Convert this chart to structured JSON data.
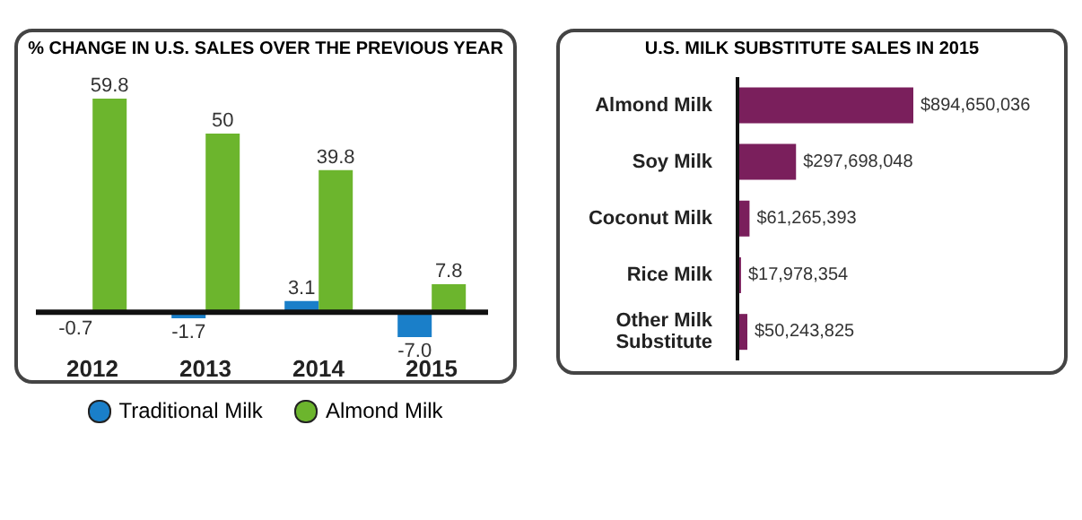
{
  "chart_data": [
    {
      "type": "bar",
      "title": "% CHANGE IN U.S. SALES OVER THE PREVIOUS YEAR",
      "categories": [
        "2012",
        "2013",
        "2014",
        "2015"
      ],
      "series": [
        {
          "name": "Traditional Milk",
          "color": "#1a7fc9",
          "values": [
            -0.7,
            -1.7,
            3.1,
            -7.0
          ],
          "value_labels": [
            "-0.7",
            "-1.7",
            "3.1",
            "-7.0"
          ]
        },
        {
          "name": "Almond Milk",
          "color": "#6cb52d",
          "values": [
            59.8,
            50,
            39.8,
            7.8
          ],
          "value_labels": [
            "59.8",
            "50",
            "39.8",
            "7.8"
          ]
        }
      ],
      "data_labels": true,
      "legend": "bottom"
    },
    {
      "type": "bar",
      "orientation": "horizontal",
      "title": "U.S. MILK SUBSTITUTE SALES IN 2015",
      "categories": [
        "Almond Milk",
        "Soy Milk",
        "Coconut Milk",
        "Rice Milk",
        "Other Milk Substitute"
      ],
      "series": [
        {
          "color": "#7a1f5c",
          "values": [
            894650036,
            297698048,
            61265393,
            17978354,
            50243825
          ],
          "value_labels": [
            "$894,650,036",
            "$297,698,048",
            "$61,265,393",
            "$17,978,354",
            "$50,243,825"
          ]
        }
      ],
      "data_labels": true
    }
  ]
}
